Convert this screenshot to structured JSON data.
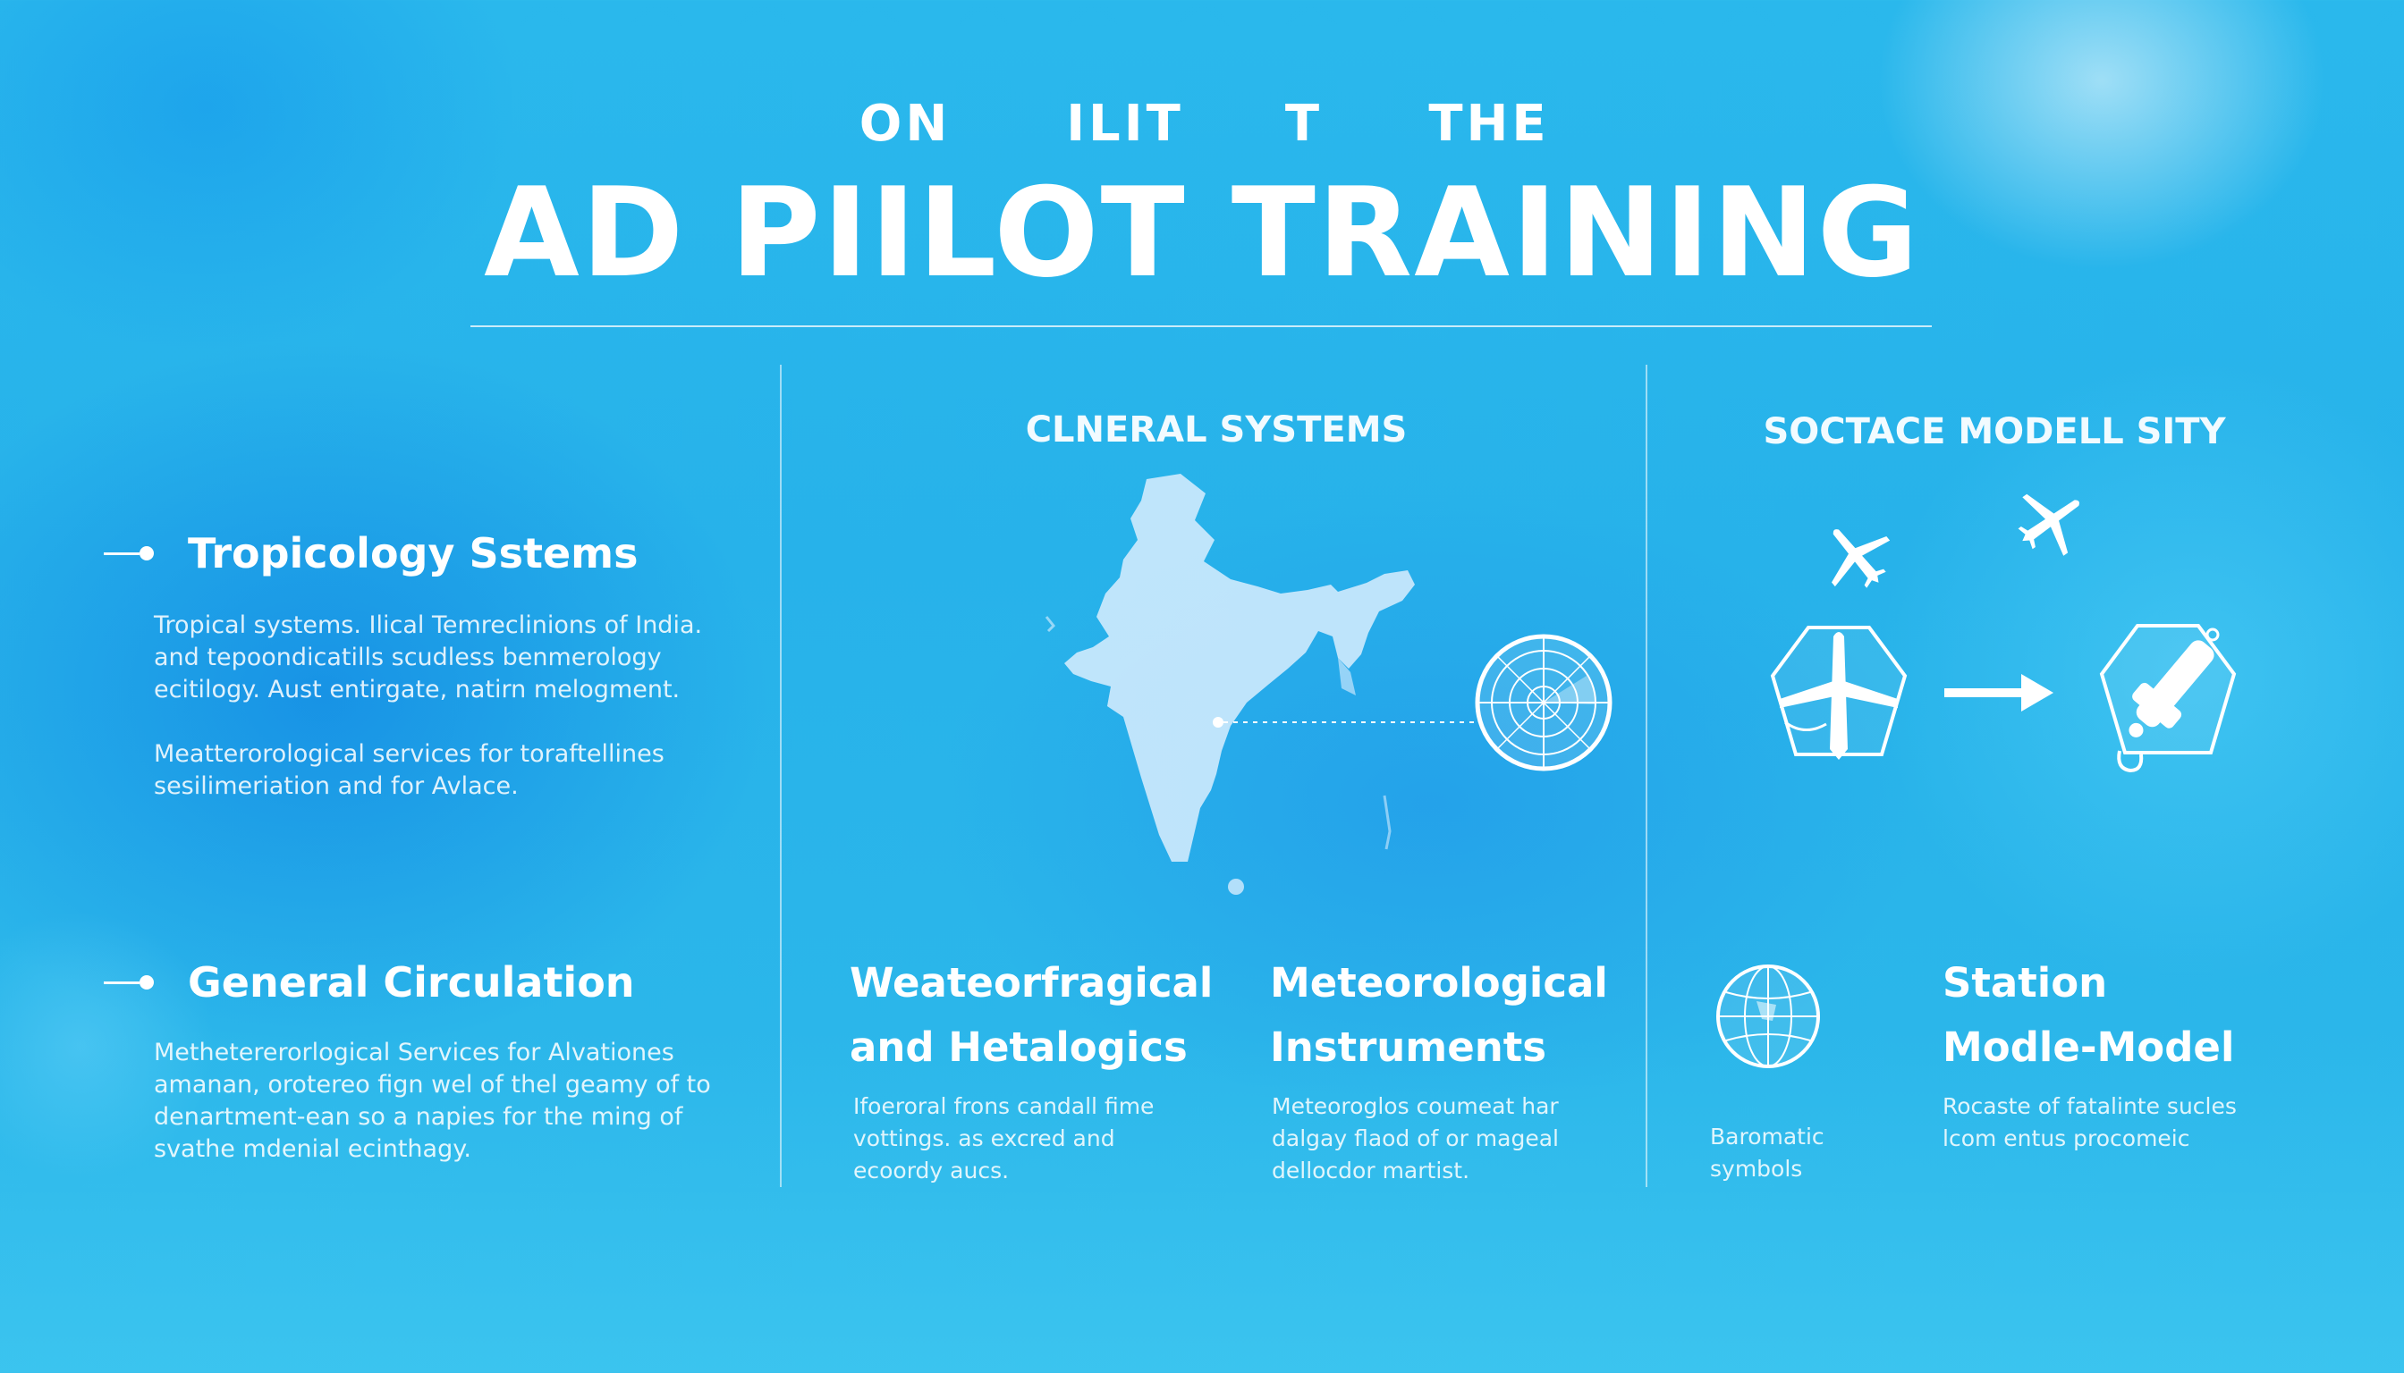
{
  "header": {
    "kicker_words": [
      "ON",
      "ILIT",
      "T",
      "THE"
    ],
    "title": "AD PIILOT TRAINING"
  },
  "left": {
    "section1": {
      "heading": "Tropicology Sstems",
      "para1": [
        "Tropical systems. Ilical Temreclinions of India.",
        "and tepoondicatills scudless benmerology",
        "ecitilogy. Aust entirgate, natirn melogment."
      ],
      "para2": [
        "Meatterorological services for toraftellines",
        "sesilimeriation and for Avlace."
      ]
    },
    "section2": {
      "heading": "General Circulation",
      "para": [
        "Methetererorlogical Services for Alvationes",
        "amanan, orotereo fign wel of thel geamy of to",
        "denartment-ean so a napies for the ming of",
        "svathe mdenial ecinthagy."
      ]
    }
  },
  "middle": {
    "heading": "CLNERAL SYSTEMS",
    "col1": {
      "title": [
        "Weateorfragical",
        "and Hetalogics"
      ],
      "desc": [
        "Ifoeroral frons candall fime",
        "vottings. as excred and",
        "ecoordy aucs."
      ]
    },
    "col2": {
      "title": [
        "Meteorological",
        "Instruments"
      ],
      "desc": [
        "Meteoroglos coumeat har",
        "dalgay flaod of or mageal",
        "dellocdor martist."
      ]
    }
  },
  "right": {
    "heading": "SOCTACE MODELL SITY",
    "caption_left": [
      "Baromatic",
      "symbols"
    ],
    "station_title": [
      "Station",
      "Modle-Model"
    ],
    "station_desc": [
      "Rocaste of fatalinte sucles",
      "lcom entus procomeic"
    ]
  },
  "icons": {
    "bullet": "bullet-dash-dot-icon",
    "map": "india-map-icon",
    "radar": "radar-icon",
    "plane": "airplane-icon",
    "arrow": "arrow-right-icon",
    "globe": "globe-icon"
  }
}
